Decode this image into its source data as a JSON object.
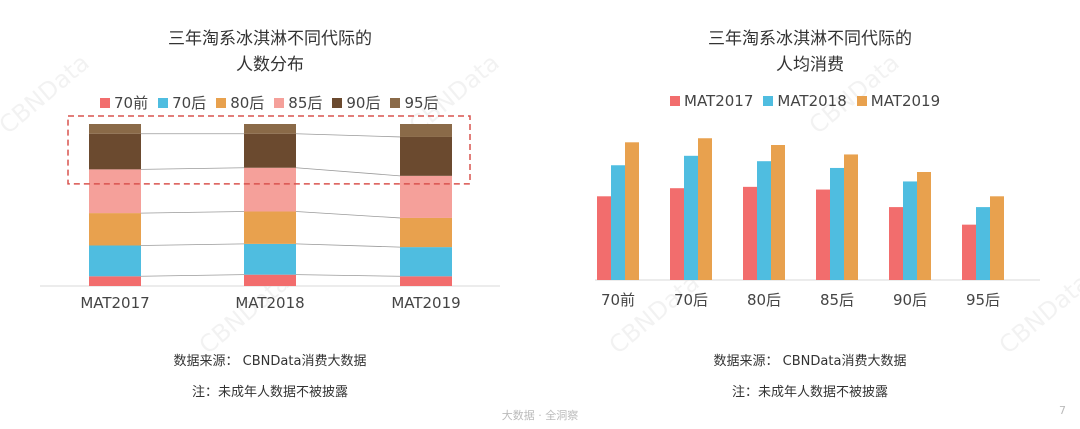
{
  "chart_data": [
    {
      "type": "bar",
      "stacked": true,
      "title": "三年淘系冰淇淋不同代际的人数分布",
      "title_lines": [
        "三年淘系冰淇淋不同代际的",
        "人数分布"
      ],
      "categories": [
        "MAT2017",
        "MAT2018",
        "MAT2019"
      ],
      "ylim": [
        0,
        100
      ],
      "legend_position": "top",
      "series": [
        {
          "name": "70前",
          "values": [
            6,
            7,
            6
          ],
          "color": "#f26d6d"
        },
        {
          "name": "70后",
          "values": [
            19,
            19,
            18
          ],
          "color": "#4fbde0"
        },
        {
          "name": "80后",
          "values": [
            20,
            20,
            18
          ],
          "color": "#e8a14e"
        },
        {
          "name": "85后",
          "values": [
            27,
            27,
            26
          ],
          "color": "#f5a09a"
        },
        {
          "name": "90后",
          "values": [
            22,
            21,
            24
          ],
          "color": "#6b4a2f"
        },
        {
          "name": "95后",
          "values": [
            6,
            6,
            8
          ],
          "color": "#8a6a48"
        }
      ],
      "highlight_series": [
        "90后",
        "95后"
      ],
      "grid": false
    },
    {
      "type": "bar",
      "title": "三年淘系冰淇淋不同代际的人均消费",
      "title_lines": [
        "三年淘系冰淇淋不同代际的",
        "人均消费"
      ],
      "categories": [
        "70前",
        "70后",
        "80后",
        "85后",
        "90后",
        "95后"
      ],
      "ylim": [
        0,
        100
      ],
      "legend_position": "top",
      "series": [
        {
          "name": "MAT2017",
          "values": [
            62,
            68,
            69,
            67,
            54,
            41
          ],
          "color": "#f26d6d"
        },
        {
          "name": "MAT2018",
          "values": [
            85,
            92,
            88,
            83,
            73,
            54
          ],
          "color": "#4fbde0"
        },
        {
          "name": "MAT2019",
          "values": [
            102,
            105,
            100,
            93,
            80,
            62
          ],
          "color": "#e8a14e"
        }
      ],
      "grid": false
    }
  ],
  "notes": {
    "source": "数据来源： CBNData消费大数据",
    "disclaimer": "注：未成年人数据不被披露"
  },
  "footer": "大数据 · 全洞察",
  "page_number": "7",
  "watermark": "CBNData"
}
